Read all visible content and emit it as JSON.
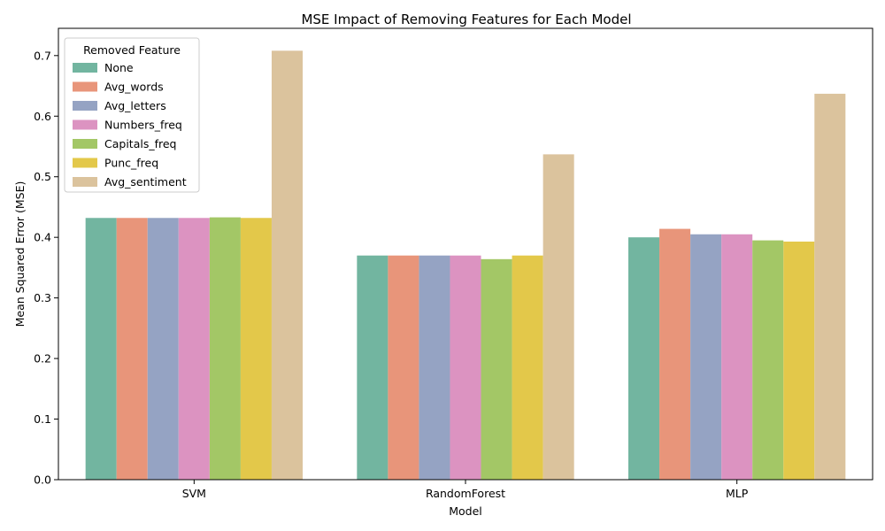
{
  "chart_data": {
    "type": "bar",
    "title": "MSE Impact of Removing Features for Each Model",
    "xlabel": "Model",
    "ylabel": "Mean Squared Error (MSE)",
    "categories": [
      "SVM",
      "RandomForest",
      "MLP"
    ],
    "ylim": [
      0,
      0.745
    ],
    "yticks": [
      "0.0",
      "0.1",
      "0.2",
      "0.3",
      "0.4",
      "0.5",
      "0.6",
      "0.7"
    ],
    "grid": false,
    "legend": {
      "title": "Removed Feature",
      "placement": "top-left"
    },
    "series": [
      {
        "name": "None",
        "color": "#72b5a0",
        "values": [
          0.432,
          0.37,
          0.4
        ]
      },
      {
        "name": "Avg_words",
        "color": "#e8957a",
        "values": [
          0.432,
          0.37,
          0.414
        ]
      },
      {
        "name": "Avg_letters",
        "color": "#95a3c3",
        "values": [
          0.432,
          0.37,
          0.405
        ]
      },
      {
        "name": "Numbers_freq",
        "color": "#dc93c1",
        "values": [
          0.432,
          0.37,
          0.405
        ]
      },
      {
        "name": "Capitals_freq",
        "color": "#a3c766",
        "values": [
          0.433,
          0.364,
          0.395
        ]
      },
      {
        "name": "Punc_freq",
        "color": "#e3c84a",
        "values": [
          0.432,
          0.37,
          0.393
        ]
      },
      {
        "name": "Avg_sentiment",
        "color": "#dbc39d",
        "values": [
          0.708,
          0.537,
          0.637
        ]
      }
    ]
  }
}
